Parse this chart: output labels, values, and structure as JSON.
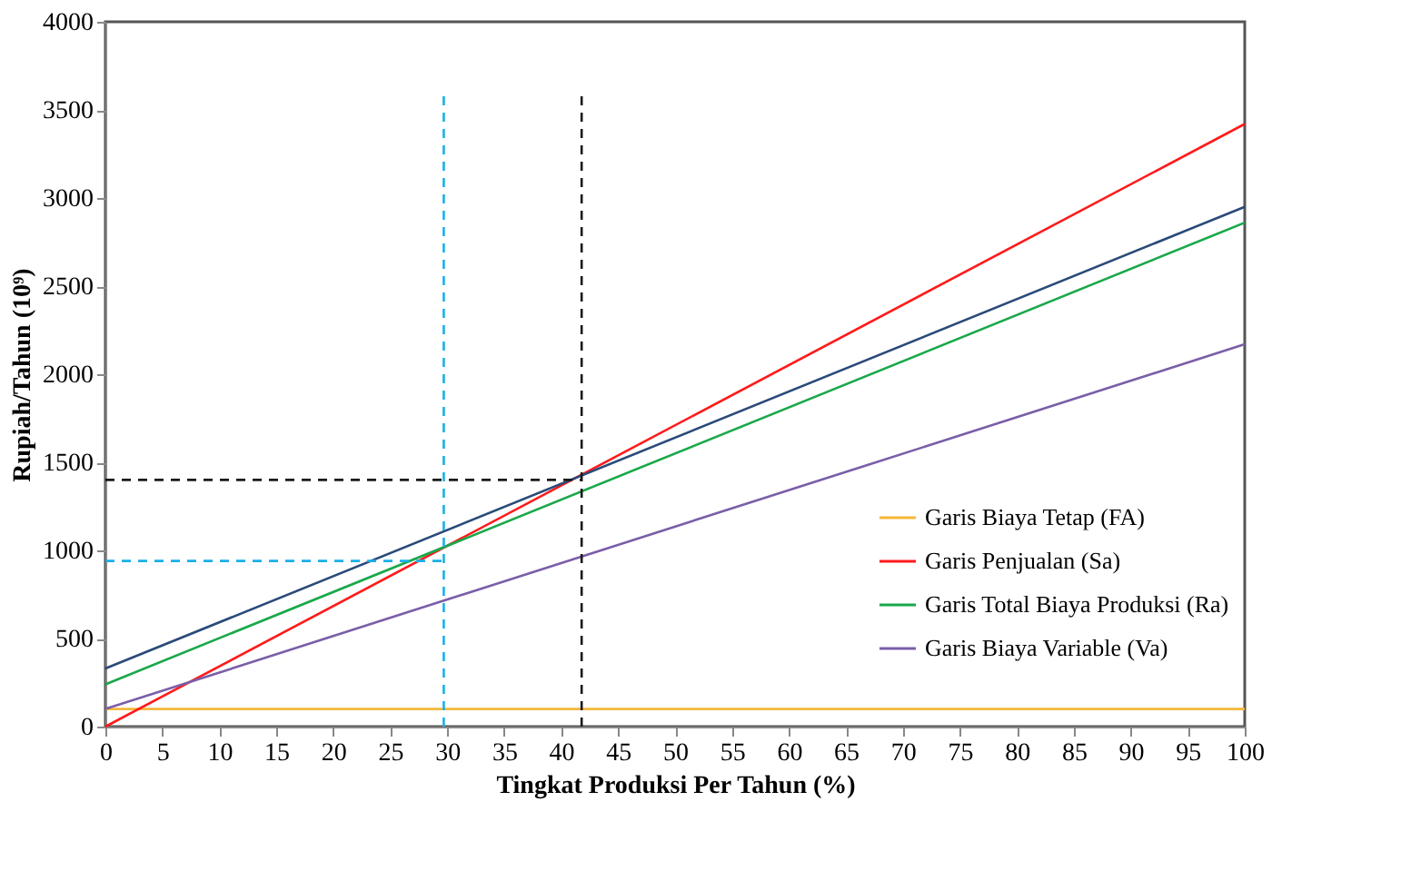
{
  "chart_data": {
    "type": "line",
    "xlabel": "Tingkat  Produksi Per Tahun (%)",
    "ylabel": "Rupiah/Tahun (10⁹)",
    "x": [
      0,
      100
    ],
    "series": [
      {
        "name": "Garis Biaya Tetap (FA)",
        "color": "#f5b83a",
        "values": [
          100,
          100
        ]
      },
      {
        "name": "Garis Penjualan (Sa)",
        "color": "#ff1a1a",
        "values": [
          0,
          3420
        ]
      },
      {
        "name": "Garis Total Biaya Produksi (Ra)",
        "color": "#1aa84a",
        "values": [
          240,
          2860
        ]
      },
      {
        "name": "Garis Biaya Variable (Va)",
        "color": "#7a5ea8",
        "values": [
          100,
          2170
        ]
      },
      {
        "color": "#2a4a7a",
        "values": [
          330,
          2950
        ]
      },
      {
        "color": "#1ab0e8",
        "x": [
          29.7,
          29.7
        ],
        "values": [
          0,
          3600
        ],
        "line_style": "dashed"
      },
      {
        "color": "#1a1a1a",
        "x": [
          41.8,
          41.8
        ],
        "values": [
          0,
          3600
        ],
        "line_style": "dashed"
      },
      {
        "color": "#1ab0e8",
        "x": [
          0,
          29.7
        ],
        "values": [
          940,
          940
        ],
        "line_style": "dashed"
      },
      {
        "color": "#1a1a1a",
        "x": [
          0,
          41.8
        ],
        "values": [
          1400,
          1400
        ],
        "line_style": "dashed"
      }
    ],
    "xlim": [
      0,
      100
    ],
    "xticks": [
      0,
      5,
      10,
      15,
      20,
      25,
      30,
      35,
      40,
      45,
      50,
      55,
      60,
      65,
      70,
      75,
      80,
      85,
      90,
      95,
      100
    ],
    "ylim": [
      0,
      4000
    ],
    "yticks": [
      0,
      500,
      1000,
      1500,
      2000,
      2500,
      3000,
      3500,
      4000
    ],
    "grid": false,
    "legend": "right",
    "line_style": "solid",
    "marker": "none"
  }
}
